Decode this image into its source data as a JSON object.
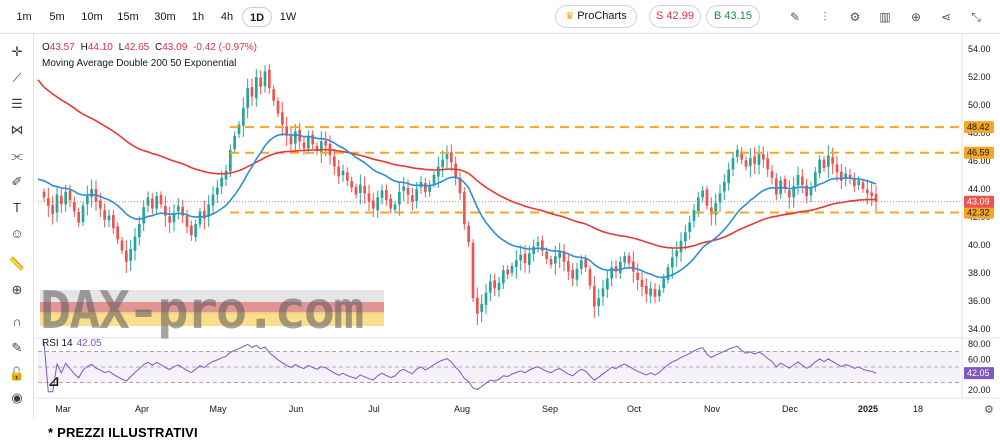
{
  "toolbar": {
    "timeframes": [
      "1m",
      "5m",
      "10m",
      "15m",
      "30m",
      "1h",
      "4h",
      "1D",
      "1W"
    ],
    "active_timeframe": "1D",
    "pro_label": "ProCharts",
    "sell_label": "S 42.99",
    "buy_label": "B 43.15",
    "icons": [
      "pencil-icon",
      "indicators-icon",
      "settings-icon",
      "compare-icon",
      "add-icon",
      "share-icon",
      "collapse-icon"
    ]
  },
  "left_tools": [
    "crosshair-icon",
    "trendline-icon",
    "fib-icon",
    "pattern-icon",
    "channel-icon",
    "brush-icon",
    "text-icon",
    "emoji-icon",
    "ruler-icon",
    "zoom-icon",
    "magnet-icon",
    "lock-drawing-icon",
    "lock-icon",
    "visibility-icon"
  ],
  "legend": {
    "o": "O",
    "o_val": "43.57",
    "h": "H",
    "h_val": "44.10",
    "l": "L",
    "l_val": "42.65",
    "c": "C",
    "c_val": "43.09",
    "change": "-0.42 (-0.97%)",
    "ma_title": "Moving Average Double 200 50 Exponential",
    "rsi_title": "RSI 14",
    "rsi_value": "42.05"
  },
  "watermark": "DAX-pro.com",
  "footer_note": "* PREZZI ILLUSTRATIVI",
  "colors": {
    "up": "#26a69a",
    "down": "#ef5350",
    "ma200": "#e53935",
    "ma50": "#2b8fd6",
    "levels": "#f5a623",
    "rsi": "#7e57c2"
  },
  "chart_data": [
    {
      "type": "candlestick",
      "name": "price",
      "ylim": [
        33.5,
        54.5
      ],
      "y_ticks": [
        "54.00",
        "52.00",
        "50.00",
        "48.00",
        "46.00",
        "44.00",
        "42.00",
        "40.00",
        "38.00",
        "36.00",
        "34.00"
      ],
      "x_ticks": [
        "Mar",
        "Apr",
        "May",
        "Jun",
        "Jul",
        "Aug",
        "Sep",
        "Oct",
        "Nov",
        "Dec",
        "2025",
        "18"
      ],
      "last_price": "43.09",
      "levels": [
        {
          "label": "48.42",
          "value": 48.42
        },
        {
          "label": "46.59",
          "value": 46.59
        },
        {
          "label": "42.32",
          "value": 42.32
        }
      ],
      "closes": [
        43.4,
        42.8,
        42.2,
        43.6,
        42.9,
        43.8,
        43.2,
        42.4,
        41.6,
        42.8,
        43.5,
        44.0,
        43.1,
        42.6,
        41.8,
        42.1,
        41.2,
        40.4,
        39.6,
        38.8,
        39.7,
        40.6,
        41.5,
        42.7,
        43.4,
        42.6,
        43.5,
        42.9,
        42.1,
        41.6,
        42.3,
        42.8,
        42.1,
        41.3,
        40.7,
        41.5,
        42.4,
        41.9,
        42.9,
        43.6,
        44.1,
        44.8,
        45.3,
        46.8,
        47.8,
        48.6,
        49.8,
        51.2,
        50.6,
        52.0,
        51.3,
        52.4,
        51.2,
        50.3,
        49.4,
        48.6,
        47.8,
        47.2,
        48.1,
        47.4,
        46.9,
        47.8,
        47.2,
        46.7,
        47.4,
        47.1,
        46.4,
        45.6,
        44.9,
        45.3,
        44.6,
        44.1,
        43.6,
        44.3,
        43.7,
        43.1,
        42.6,
        43.4,
        43.9,
        43.2,
        42.6,
        42.9,
        43.8,
        44.2,
        43.6,
        43.1,
        44.0,
        44.5,
        43.8,
        44.3,
        45.0,
        45.6,
        46.1,
        46.5,
        45.9,
        44.8,
        43.7,
        41.5,
        40.2,
        36.2,
        35.1,
        35.8,
        36.6,
        37.4,
        36.9,
        37.3,
        38.2,
        37.9,
        38.5,
        38.9,
        39.3,
        38.7,
        39.4,
        39.9,
        40.2,
        39.6,
        39.0,
        38.6,
        39.2,
        39.5,
        38.8,
        38.1,
        37.6,
        38.3,
        38.9,
        38.4,
        37.1,
        35.6,
        36.2,
        36.9,
        37.6,
        38.4,
        38.1,
        38.8,
        39.2,
        38.7,
        38.1,
        37.5,
        37.0,
        36.5,
        36.9,
        36.3,
        36.8,
        37.6,
        38.4,
        39.1,
        39.6,
        40.3,
        40.9,
        41.6,
        42.5,
        43.4,
        43.9,
        42.8,
        42.2,
        43.0,
        43.7,
        44.5,
        45.4,
        46.2,
        46.8,
        46.1,
        45.6,
        46.2,
        45.8,
        46.5,
        46.1,
        45.4,
        44.8,
        43.6,
        44.6,
        44.0,
        43.4,
        44.2,
        45.0,
        44.3,
        43.5,
        44.1,
        45.2,
        46.1,
        45.5,
        46.4,
        45.8,
        45.2,
        44.6,
        45.1,
        44.8,
        44.2,
        44.6,
        44.0,
        43.7,
        43.51,
        43.09
      ],
      "ma200_start": 51.5,
      "ma50_start": 44.7
    },
    {
      "type": "line",
      "name": "RSI 14",
      "ylim": [
        15,
        85
      ],
      "y_ticks": [
        "80.00",
        "60.00",
        "40.00",
        "20.00"
      ],
      "bands": [
        70,
        50,
        30
      ],
      "last_value": "42.05"
    }
  ]
}
